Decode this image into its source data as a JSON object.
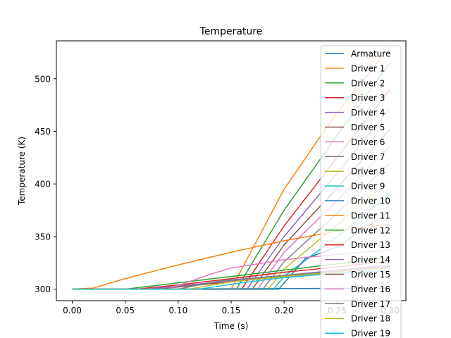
{
  "chart_data": {
    "type": "line",
    "title": "Temperature",
    "xlabel": "Time (s)",
    "ylabel": "Temperature (K)",
    "xlim": [
      -0.015,
      0.315
    ],
    "ylim": [
      289,
      536
    ],
    "xticks": [
      0.0,
      0.05,
      0.1,
      0.15,
      0.2,
      0.25,
      0.3
    ],
    "xtick_labels": [
      "0.00",
      "0.05",
      "0.10",
      "0.15",
      "0.20",
      "0.25",
      "0.30"
    ],
    "yticks": [
      300,
      350,
      400,
      450,
      500
    ],
    "ytick_labels": [
      "300",
      "350",
      "400",
      "450",
      "500"
    ],
    "grid": false,
    "legend": "top-right",
    "series": [
      {
        "name": "Armature",
        "color": "#1f77b4",
        "points": [
          [
            0.0,
            300
          ],
          [
            0.2,
            300.5
          ],
          [
            0.3,
            301
          ]
        ]
      },
      {
        "name": "Driver 1",
        "color": "#ff7f0e",
        "points": [
          [
            0.0,
            300
          ],
          [
            0.15,
            300
          ],
          [
            0.2,
            395
          ],
          [
            0.25,
            468
          ],
          [
            0.3,
            530
          ]
        ]
      },
      {
        "name": "Driver 2",
        "color": "#2ca02c",
        "points": [
          [
            0.0,
            300
          ],
          [
            0.155,
            300
          ],
          [
            0.2,
            375
          ],
          [
            0.25,
            446
          ],
          [
            0.3,
            515
          ]
        ]
      },
      {
        "name": "Driver 3",
        "color": "#d62728",
        "points": [
          [
            0.0,
            300
          ],
          [
            0.16,
            300
          ],
          [
            0.2,
            360
          ],
          [
            0.25,
            425
          ],
          [
            0.3,
            490
          ]
        ]
      },
      {
        "name": "Driver 4",
        "color": "#9467bd",
        "points": [
          [
            0.0,
            300
          ],
          [
            0.165,
            300
          ],
          [
            0.2,
            350
          ],
          [
            0.25,
            410
          ],
          [
            0.3,
            472
          ]
        ]
      },
      {
        "name": "Driver 5",
        "color": "#8c564b",
        "points": [
          [
            0.0,
            300
          ],
          [
            0.17,
            300
          ],
          [
            0.2,
            342
          ],
          [
            0.25,
            396
          ],
          [
            0.3,
            452
          ]
        ]
      },
      {
        "name": "Driver 6",
        "color": "#e377c2",
        "points": [
          [
            0.0,
            300
          ],
          [
            0.175,
            300
          ],
          [
            0.2,
            335
          ],
          [
            0.25,
            384
          ],
          [
            0.3,
            436
          ]
        ]
      },
      {
        "name": "Driver 7",
        "color": "#7f7f7f",
        "points": [
          [
            0.0,
            300
          ],
          [
            0.18,
            300
          ],
          [
            0.2,
            326
          ],
          [
            0.25,
            372
          ],
          [
            0.3,
            420
          ]
        ]
      },
      {
        "name": "Driver 8",
        "color": "#bcbd22",
        "points": [
          [
            0.0,
            300
          ],
          [
            0.185,
            300
          ],
          [
            0.2,
            319
          ],
          [
            0.25,
            361
          ],
          [
            0.3,
            404
          ]
        ]
      },
      {
        "name": "Driver 9",
        "color": "#17becf",
        "points": [
          [
            0.0,
            300
          ],
          [
            0.19,
            300
          ],
          [
            0.2,
            312
          ],
          [
            0.25,
            350
          ],
          [
            0.3,
            390
          ]
        ]
      },
      {
        "name": "Driver 10",
        "color": "#1f77b4",
        "points": [
          [
            0.0,
            300
          ],
          [
            0.195,
            300
          ],
          [
            0.22,
            329
          ],
          [
            0.25,
            340
          ],
          [
            0.3,
            374
          ]
        ]
      },
      {
        "name": "Driver 11",
        "color": "#ff7f0e",
        "points": [
          [
            0.0,
            300
          ],
          [
            0.02,
            301
          ],
          [
            0.05,
            310
          ],
          [
            0.1,
            323
          ],
          [
            0.15,
            335
          ],
          [
            0.2,
            346
          ],
          [
            0.25,
            355
          ],
          [
            0.3,
            362
          ]
        ]
      },
      {
        "name": "Driver 12",
        "color": "#2ca02c",
        "points": [
          [
            0.0,
            300
          ],
          [
            0.05,
            300
          ],
          [
            0.1,
            306
          ],
          [
            0.15,
            312
          ],
          [
            0.2,
            318
          ],
          [
            0.25,
            324
          ],
          [
            0.3,
            330
          ]
        ]
      },
      {
        "name": "Driver 13",
        "color": "#d62728",
        "points": [
          [
            0.0,
            300
          ],
          [
            0.06,
            300
          ],
          [
            0.1,
            304
          ],
          [
            0.15,
            310
          ],
          [
            0.2,
            316
          ],
          [
            0.25,
            321
          ],
          [
            0.3,
            327
          ]
        ]
      },
      {
        "name": "Driver 14",
        "color": "#9467bd",
        "points": [
          [
            0.0,
            300
          ],
          [
            0.07,
            300
          ],
          [
            0.12,
            305
          ],
          [
            0.15,
            308
          ],
          [
            0.2,
            313
          ],
          [
            0.25,
            318
          ],
          [
            0.3,
            323
          ]
        ]
      },
      {
        "name": "Driver 15",
        "color": "#8c564b",
        "points": [
          [
            0.0,
            300
          ],
          [
            0.08,
            300
          ],
          [
            0.12,
            304
          ],
          [
            0.15,
            307
          ],
          [
            0.2,
            312
          ],
          [
            0.25,
            316
          ],
          [
            0.3,
            321
          ]
        ]
      },
      {
        "name": "Driver 16",
        "color": "#e377c2",
        "points": [
          [
            0.0,
            300
          ],
          [
            0.09,
            300
          ],
          [
            0.13,
            314
          ],
          [
            0.15,
            320
          ],
          [
            0.2,
            328
          ],
          [
            0.25,
            333
          ],
          [
            0.3,
            337
          ]
        ]
      },
      {
        "name": "Driver 17",
        "color": "#7f7f7f",
        "points": [
          [
            0.0,
            300
          ],
          [
            0.1,
            300
          ],
          [
            0.14,
            308
          ],
          [
            0.2,
            313
          ],
          [
            0.25,
            317
          ],
          [
            0.3,
            322
          ]
        ]
      },
      {
        "name": "Driver 18",
        "color": "#bcbd22",
        "points": [
          [
            0.0,
            300
          ],
          [
            0.11,
            300
          ],
          [
            0.15,
            307
          ],
          [
            0.2,
            312
          ],
          [
            0.25,
            316
          ],
          [
            0.3,
            320
          ]
        ]
      },
      {
        "name": "Driver 19",
        "color": "#17becf",
        "points": [
          [
            0.0,
            300
          ],
          [
            0.12,
            300
          ],
          [
            0.16,
            306
          ],
          [
            0.2,
            311
          ],
          [
            0.25,
            315
          ],
          [
            0.3,
            318
          ]
        ]
      }
    ]
  }
}
